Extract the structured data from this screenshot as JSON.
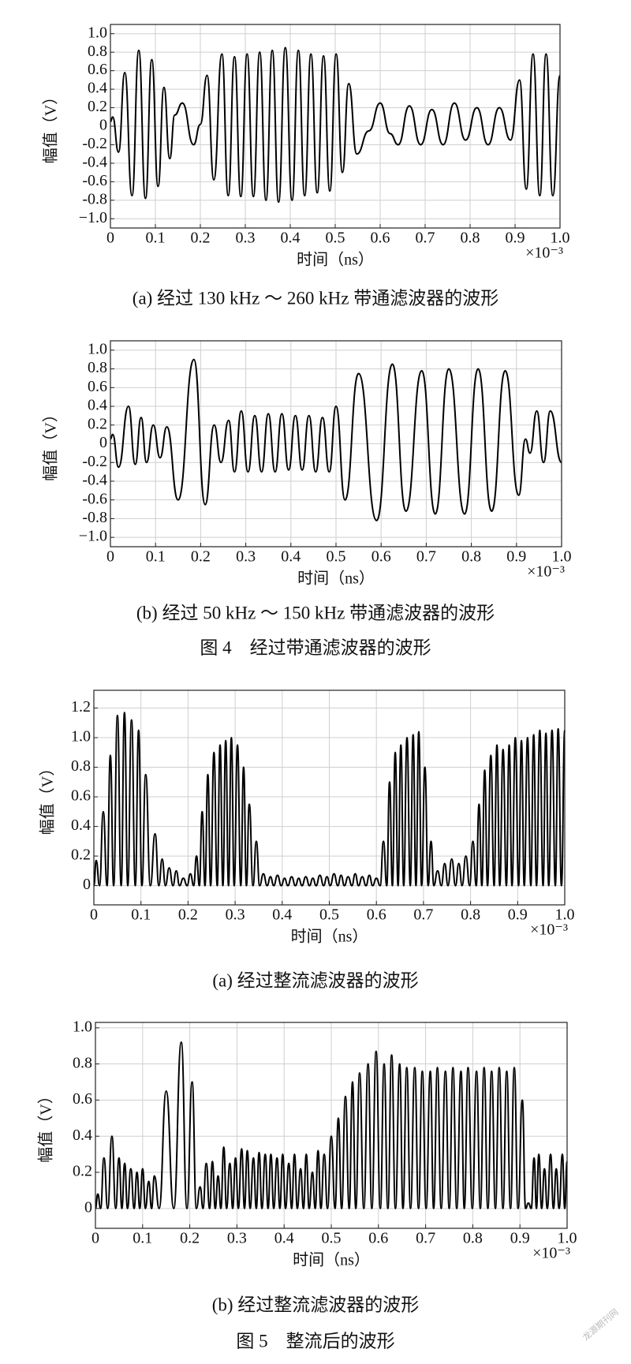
{
  "chart_data": [
    {
      "type": "line",
      "xlabel": "时间（ns）",
      "ylabel": "幅值（V）",
      "x_multiplier": "×10⁻³",
      "caption": "(a) 经过 130 kHz ～ 260 kHz 带通滤波器的波形",
      "xlim": [
        0,
        1
      ],
      "ylim": [
        -1.1,
        1.1
      ],
      "grid": true,
      "color": "#000000",
      "xticks": [
        0,
        0.1,
        0.2,
        0.3,
        0.4,
        0.5,
        0.6,
        0.7,
        0.8,
        0.9,
        {
          "value": 1,
          "label": "1.0"
        }
      ],
      "yticks": [
        {
          "value": -1,
          "label": "−1.0"
        },
        -0.8,
        -0.6,
        -0.4,
        -0.2,
        0,
        0.2,
        0.4,
        0.6,
        0.8,
        {
          "value": 1,
          "label": "1.0"
        }
      ],
      "x": [
        0,
        0.005,
        0.018,
        0.032,
        0.048,
        0.063,
        0.078,
        0.092,
        0.106,
        0.119,
        0.132,
        0.143,
        0.16,
        0.185,
        0.2,
        0.215,
        0.23,
        0.248,
        0.262,
        0.276,
        0.29,
        0.304,
        0.318,
        0.332,
        0.346,
        0.36,
        0.374,
        0.389,
        0.404,
        0.418,
        0.432,
        0.446,
        0.46,
        0.474,
        0.488,
        0.502,
        0.516,
        0.53,
        0.548,
        0.575,
        0.6,
        0.622,
        0.64,
        0.665,
        0.69,
        0.715,
        0.74,
        0.765,
        0.79,
        0.815,
        0.84,
        0.865,
        0.89,
        0.91,
        0.925,
        0.94,
        0.955,
        0.969,
        0.984,
        1
      ],
      "values": [
        0.05,
        0.1,
        -0.28,
        0.58,
        -0.75,
        0.82,
        -0.78,
        0.72,
        -0.65,
        0.42,
        -0.35,
        0.12,
        0.25,
        -0.2,
        0.02,
        0.55,
        -0.58,
        0.78,
        -0.75,
        0.75,
        -0.76,
        0.78,
        -0.76,
        0.8,
        -0.8,
        0.82,
        -0.82,
        0.85,
        -0.8,
        0.82,
        -0.75,
        0.78,
        -0.72,
        0.76,
        -0.7,
        0.78,
        -0.5,
        0.46,
        -0.3,
        -0.05,
        0.25,
        -0.08,
        -0.2,
        0.22,
        -0.2,
        0.18,
        -0.2,
        0.25,
        -0.15,
        0.2,
        -0.2,
        0.2,
        -0.15,
        0.5,
        -0.68,
        0.78,
        -0.75,
        0.78,
        -0.75,
        0.55
      ]
    },
    {
      "type": "line",
      "xlabel": "时间（ns）",
      "ylabel": "幅值（V）",
      "x_multiplier": "×10⁻³",
      "caption": "(b) 经过 50 kHz ～ 150 kHz 带通滤波器的波形",
      "xlim": [
        0,
        1
      ],
      "ylim": [
        -1.1,
        1.1
      ],
      "grid": true,
      "color": "#000000",
      "xticks": [
        0,
        0.1,
        0.2,
        0.3,
        0.4,
        0.5,
        0.6,
        0.7,
        0.8,
        0.9,
        {
          "value": 1,
          "label": "1.0"
        }
      ],
      "yticks": [
        {
          "value": -1,
          "label": "−1.0"
        },
        -0.8,
        -0.6,
        -0.4,
        -0.2,
        0,
        0.2,
        0.4,
        0.6,
        0.8,
        {
          "value": 1,
          "label": "1.0"
        }
      ],
      "x": [
        0,
        0.005,
        0.018,
        0.04,
        0.055,
        0.068,
        0.08,
        0.095,
        0.11,
        0.125,
        0.15,
        0.185,
        0.21,
        0.23,
        0.245,
        0.262,
        0.275,
        0.29,
        0.305,
        0.32,
        0.335,
        0.35,
        0.365,
        0.38,
        0.395,
        0.41,
        0.425,
        0.44,
        0.455,
        0.47,
        0.485,
        0.5,
        0.52,
        0.55,
        0.59,
        0.625,
        0.655,
        0.69,
        0.72,
        0.75,
        0.785,
        0.815,
        0.845,
        0.875,
        0.905,
        0.92,
        0.93,
        0.945,
        0.96,
        0.975,
        1
      ],
      "values": [
        0.05,
        0.1,
        -0.25,
        0.4,
        -0.22,
        0.28,
        -0.2,
        0.2,
        -0.15,
        0.18,
        -0.6,
        0.9,
        -0.65,
        0.2,
        -0.2,
        0.25,
        -0.3,
        0.35,
        -0.3,
        0.3,
        -0.3,
        0.32,
        -0.3,
        0.32,
        -0.28,
        0.3,
        -0.28,
        0.3,
        -0.3,
        0.28,
        -0.3,
        0.4,
        -0.6,
        0.75,
        -0.82,
        0.85,
        -0.72,
        0.78,
        -0.75,
        0.8,
        -0.75,
        0.8,
        -0.72,
        0.78,
        -0.55,
        0.05,
        -0.1,
        0.35,
        -0.2,
        0.35,
        -0.2
      ]
    },
    {
      "type": "line",
      "xlabel": "时间（ns）",
      "ylabel": "幅值（V）",
      "x_multiplier": "×10⁻³",
      "caption": "(a) 经过整流滤波器的波形",
      "xlim": [
        0,
        1
      ],
      "ylim": [
        -0.13,
        1.32
      ],
      "grid": true,
      "color": "#000000",
      "xticks": [
        0,
        0.1,
        0.2,
        0.3,
        0.4,
        0.5,
        0.6,
        0.7,
        0.8,
        0.9,
        {
          "value": 1,
          "label": "1.0"
        }
      ],
      "yticks": [
        0,
        0.2,
        0.4,
        0.6,
        0.8,
        {
          "value": 1,
          "label": "1.0"
        },
        1.2
      ],
      "x": [
        0,
        0.005,
        0.012,
        0.02,
        0.028,
        0.035,
        0.042,
        0.05,
        0.058,
        0.065,
        0.072,
        0.08,
        0.088,
        0.095,
        0.102,
        0.11,
        0.12,
        0.13,
        0.138,
        0.145,
        0.152,
        0.16,
        0.168,
        0.175,
        0.182,
        0.19,
        0.198,
        0.205,
        0.212,
        0.218,
        0.224,
        0.23,
        0.236,
        0.242,
        0.248,
        0.255,
        0.262,
        0.268,
        0.274,
        0.28,
        0.286,
        0.292,
        0.298,
        0.305,
        0.312,
        0.318,
        0.324,
        0.33,
        0.338,
        0.345,
        0.352,
        0.36,
        0.368,
        0.375,
        0.382,
        0.39,
        0.398,
        0.405,
        0.412,
        0.42,
        0.428,
        0.435,
        0.442,
        0.45,
        0.458,
        0.465,
        0.472,
        0.48,
        0.488,
        0.495,
        0.502,
        0.51,
        0.518,
        0.525,
        0.532,
        0.54,
        0.548,
        0.555,
        0.562,
        0.57,
        0.578,
        0.585,
        0.592,
        0.6,
        0.608,
        0.615,
        0.622,
        0.628,
        0.634,
        0.64,
        0.646,
        0.652,
        0.658,
        0.665,
        0.672,
        0.678,
        0.684,
        0.69,
        0.696,
        0.703,
        0.71,
        0.716,
        0.722,
        0.73,
        0.738,
        0.745,
        0.752,
        0.76,
        0.768,
        0.775,
        0.782,
        0.79,
        0.798,
        0.805,
        0.812,
        0.818,
        0.824,
        0.83,
        0.836,
        0.843,
        0.85,
        0.856,
        0.862,
        0.869,
        0.876,
        0.882,
        0.888,
        0.895,
        0.902,
        0.908,
        0.914,
        0.921,
        0.928,
        0.934,
        0.94,
        0.947,
        0.954,
        0.96,
        0.966,
        0.973,
        0.98,
        0.986,
        0.993,
        1
      ],
      "values": [
        0,
        0.17,
        0,
        0.5,
        0,
        0.88,
        0,
        1.15,
        0,
        1.17,
        0,
        1.12,
        0,
        1.05,
        0,
        0.75,
        0,
        0.35,
        0,
        0.18,
        0,
        0.12,
        0,
        0.1,
        0,
        0.05,
        0,
        0.08,
        0,
        0.2,
        0,
        0.5,
        0,
        0.75,
        0,
        0.9,
        0,
        0.95,
        0,
        0.98,
        0,
        1.0,
        0,
        0.95,
        0,
        0.8,
        0,
        0.55,
        0,
        0.3,
        0,
        0.08,
        0,
        0.06,
        0,
        0.07,
        0,
        0.05,
        0,
        0.06,
        0,
        0.05,
        0,
        0.06,
        0,
        0.05,
        0,
        0.07,
        0,
        0.06,
        0,
        0.08,
        0,
        0.07,
        0,
        0.06,
        0,
        0.08,
        0,
        0.06,
        0,
        0.07,
        0,
        0.05,
        0,
        0.3,
        0,
        0.7,
        0,
        0.9,
        0,
        0.95,
        0,
        1.0,
        0,
        1.02,
        0,
        1.04,
        0,
        0.8,
        0,
        0.3,
        0,
        0.1,
        0,
        0.15,
        0,
        0.18,
        0,
        0.15,
        0,
        0.2,
        0,
        0.3,
        0,
        0.55,
        0,
        0.78,
        0,
        0.88,
        0,
        0.95,
        0,
        0.92,
        0,
        0.95,
        0,
        1.0,
        0,
        0.98,
        0,
        1.0,
        0,
        1.02,
        0,
        1.05,
        0,
        1.03,
        0,
        1.05,
        0,
        1.06,
        0,
        1.05
      ]
    },
    {
      "type": "line",
      "xlabel": "时间（ns）",
      "ylabel": "幅值（V）",
      "x_multiplier": "×10⁻³",
      "caption": "(b) 经过整流滤波器的波形",
      "xlim": [
        0,
        1
      ],
      "ylim": [
        -0.11,
        1.03
      ],
      "grid": true,
      "color": "#000000",
      "xticks": [
        0,
        0.1,
        0.2,
        0.3,
        0.4,
        0.5,
        0.6,
        0.7,
        0.8,
        0.9,
        {
          "value": 1,
          "label": "1.0"
        }
      ],
      "yticks": [
        0,
        0.2,
        0.4,
        0.6,
        0.8,
        {
          "value": 1,
          "label": "1.0"
        }
      ],
      "x": [
        0,
        0.005,
        0.011,
        0.018,
        0.026,
        0.035,
        0.043,
        0.05,
        0.056,
        0.062,
        0.068,
        0.075,
        0.082,
        0.088,
        0.094,
        0.1,
        0.106,
        0.113,
        0.119,
        0.125,
        0.135,
        0.15,
        0.166,
        0.182,
        0.194,
        0.205,
        0.214,
        0.222,
        0.228,
        0.235,
        0.242,
        0.248,
        0.254,
        0.26,
        0.266,
        0.272,
        0.278,
        0.285,
        0.291,
        0.297,
        0.303,
        0.31,
        0.316,
        0.322,
        0.328,
        0.335,
        0.341,
        0.347,
        0.353,
        0.36,
        0.366,
        0.372,
        0.378,
        0.385,
        0.391,
        0.397,
        0.403,
        0.41,
        0.416,
        0.422,
        0.428,
        0.435,
        0.441,
        0.447,
        0.453,
        0.46,
        0.466,
        0.472,
        0.478,
        0.485,
        0.492,
        0.5,
        0.508,
        0.515,
        0.522,
        0.53,
        0.538,
        0.545,
        0.552,
        0.56,
        0.569,
        0.578,
        0.586,
        0.595,
        0.604,
        0.612,
        0.62,
        0.628,
        0.636,
        0.645,
        0.652,
        0.66,
        0.668,
        0.677,
        0.685,
        0.693,
        0.701,
        0.71,
        0.717,
        0.725,
        0.733,
        0.742,
        0.75,
        0.758,
        0.766,
        0.775,
        0.782,
        0.79,
        0.799,
        0.808,
        0.816,
        0.824,
        0.832,
        0.84,
        0.848,
        0.856,
        0.864,
        0.872,
        0.88,
        0.888,
        0.896,
        0.905,
        0.912,
        0.918,
        0.924,
        0.93,
        0.935,
        0.94,
        0.946,
        0.952,
        0.958,
        0.965,
        0.971,
        0.977,
        0.983,
        0.99,
        0.995,
        1
      ],
      "values": [
        0,
        0.08,
        0,
        0.28,
        0,
        0.4,
        0,
        0.28,
        0,
        0.25,
        0,
        0.22,
        0,
        0.2,
        0,
        0.22,
        0,
        0.15,
        0,
        0.18,
        0,
        0.65,
        0,
        0.92,
        0,
        0.7,
        0,
        0.12,
        0,
        0.25,
        0,
        0.26,
        0,
        0.18,
        0,
        0.34,
        0,
        0.25,
        0,
        0.28,
        0,
        0.33,
        0,
        0.32,
        0,
        0.28,
        0,
        0.31,
        0,
        0.3,
        0,
        0.3,
        0,
        0.28,
        0,
        0.3,
        0,
        0.25,
        0,
        0.3,
        0,
        0.22,
        0,
        0.3,
        0,
        0.2,
        0,
        0.32,
        0,
        0.3,
        0,
        0.4,
        0,
        0.5,
        0,
        0.62,
        0,
        0.7,
        0,
        0.75,
        0,
        0.8,
        0,
        0.87,
        0,
        0.8,
        0,
        0.85,
        0,
        0.8,
        0,
        0.78,
        0,
        0.78,
        0,
        0.76,
        0,
        0.76,
        0,
        0.78,
        0,
        0.76,
        0,
        0.78,
        0,
        0.76,
        0,
        0.78,
        0,
        0.76,
        0,
        0.78,
        0,
        0.76,
        0,
        0.78,
        0,
        0.76,
        0,
        0.78,
        0,
        0.6,
        0,
        0.03,
        0,
        0.28,
        0,
        0.3,
        0,
        0.22,
        0,
        0.3,
        0,
        0.22,
        0,
        0.3,
        0,
        0.26
      ]
    }
  ],
  "figure_captions": [
    "图 4　经过带通滤波器的波形",
    "图 5　整流后的波形"
  ],
  "watermark": "龙源期刊网"
}
